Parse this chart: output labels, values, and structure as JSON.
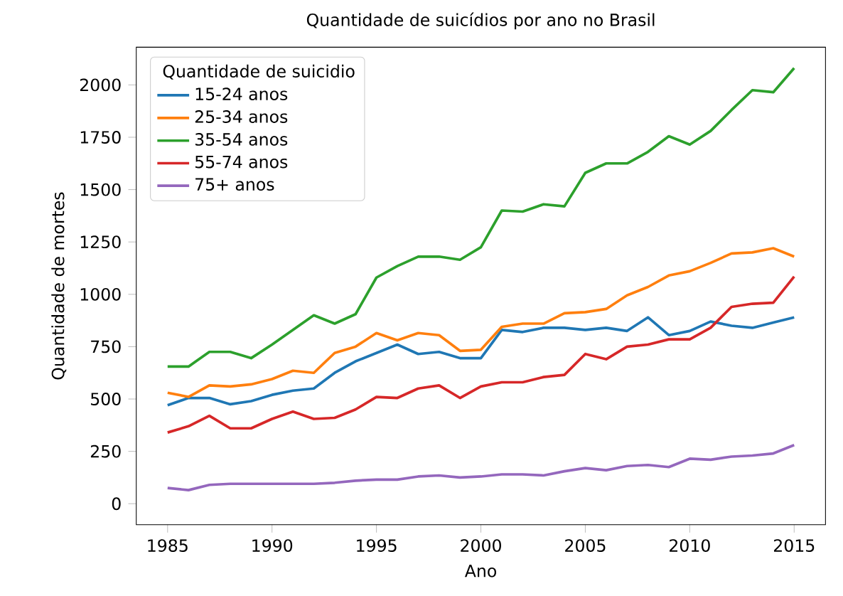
{
  "chart_data": {
    "type": "line",
    "title": "Quantidade de suicídios por ano no Brasil",
    "xlabel": "Ano",
    "ylabel": "Quantidade de mortes",
    "legend_title": "Quantidade de suicidio",
    "legend": "top left",
    "grid": false,
    "x": [
      1985,
      1986,
      1987,
      1988,
      1989,
      1990,
      1991,
      1992,
      1993,
      1994,
      1995,
      1996,
      1997,
      1998,
      1999,
      2000,
      2001,
      2002,
      2003,
      2004,
      2005,
      2006,
      2007,
      2008,
      2009,
      2010,
      2011,
      2012,
      2013,
      2014,
      2015
    ],
    "xlim": [
      1983.5,
      2016.5
    ],
    "xticks": [
      1985,
      1990,
      1995,
      2000,
      2005,
      2010,
      2015
    ],
    "ylim": [
      -100,
      2180
    ],
    "yticks": [
      0,
      250,
      500,
      750,
      1000,
      1250,
      1500,
      1750,
      2000
    ],
    "series": [
      {
        "name": "15-24 anos",
        "color": "#1f77b4",
        "values": [
          470,
          505,
          505,
          475,
          490,
          520,
          540,
          550,
          625,
          680,
          720,
          760,
          715,
          725,
          695,
          695,
          830,
          820,
          840,
          840,
          830,
          840,
          825,
          890,
          805,
          825,
          870,
          850,
          840,
          865,
          890
        ]
      },
      {
        "name": "25-34 anos",
        "color": "#ff7f0e",
        "values": [
          530,
          510,
          565,
          560,
          570,
          595,
          635,
          625,
          720,
          750,
          815,
          780,
          815,
          805,
          730,
          735,
          845,
          860,
          860,
          910,
          915,
          930,
          995,
          1035,
          1090,
          1110,
          1150,
          1195,
          1200,
          1220,
          1180
        ]
      },
      {
        "name": "35-54 anos",
        "color": "#2ca02c",
        "values": [
          655,
          655,
          725,
          725,
          695,
          760,
          830,
          900,
          860,
          905,
          1080,
          1135,
          1180,
          1180,
          1165,
          1225,
          1400,
          1395,
          1430,
          1420,
          1580,
          1625,
          1625,
          1680,
          1755,
          1715,
          1780,
          1880,
          1975,
          1965,
          2080
        ]
      },
      {
        "name": "55-74 anos",
        "color": "#d62728",
        "values": [
          340,
          370,
          420,
          360,
          360,
          405,
          440,
          405,
          410,
          450,
          510,
          505,
          550,
          565,
          505,
          560,
          580,
          580,
          605,
          615,
          715,
          690,
          750,
          760,
          785,
          785,
          840,
          940,
          955,
          960,
          1085
        ]
      },
      {
        "name": "75+ anos",
        "color": "#9467bd",
        "values": [
          75,
          65,
          90,
          95,
          95,
          95,
          95,
          95,
          100,
          110,
          115,
          115,
          130,
          135,
          125,
          130,
          140,
          140,
          135,
          155,
          170,
          160,
          180,
          185,
          175,
          215,
          210,
          225,
          230,
          240,
          280
        ]
      }
    ]
  }
}
